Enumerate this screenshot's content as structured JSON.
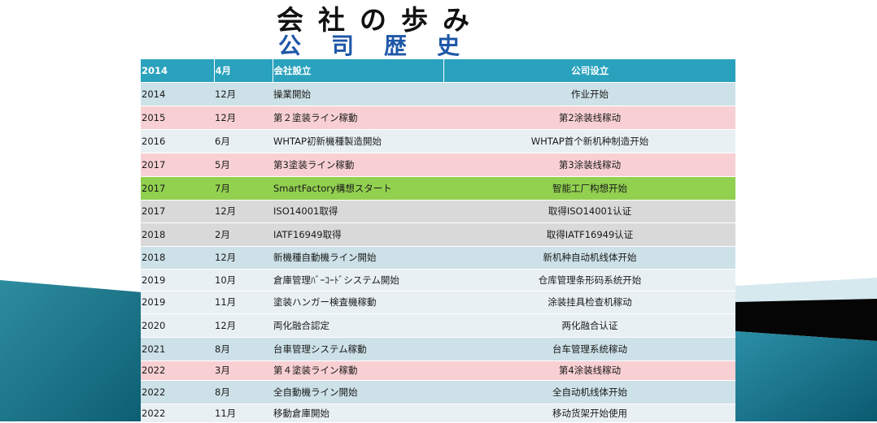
{
  "title": {
    "japanese": "会社の歩み",
    "chinese": "公司歴史"
  },
  "table": {
    "header": [
      "2014",
      "4月",
      "会社設立",
      "公司设立"
    ],
    "rows": [
      {
        "year": "2014",
        "month": "12月",
        "jp": "操業開始",
        "cn": "作业开始",
        "tone": "light"
      },
      {
        "year": "2015",
        "month": "12月",
        "jp": "第２塗装ライン稼動",
        "cn": "第2涂装线稼动",
        "tone": "pink"
      },
      {
        "year": "2016",
        "month": "6月",
        "jp": "WHTAP初新機種製造開始",
        "cn": "WHTAP首个新机种制造开始",
        "tone": "pale"
      },
      {
        "year": "2017",
        "month": "5月",
        "jp": "第3塗装ライン稼動",
        "cn": "第3涂装线稼动",
        "tone": "pink"
      },
      {
        "year": "2017",
        "month": "7月",
        "jp": "SmartFactory構想スタート",
        "cn": "智能工厂构想开始",
        "tone": "green"
      },
      {
        "year": "2017",
        "month": "12月",
        "jp": "ISO14001取得",
        "cn": "取得ISO14001认证",
        "tone": "gray"
      },
      {
        "year": "2018",
        "month": "2月",
        "jp": "IATF16949取得",
        "cn": "取得IATF16949认证",
        "tone": "gray"
      },
      {
        "year": "2018",
        "month": "12月",
        "jp": "新機種自動機ライン開始",
        "cn": "新机种自动机线体开始",
        "tone": "light"
      },
      {
        "year": "2019",
        "month": "10月",
        "jp": "倉庫管理ﾊﾞｰｺｰﾄﾞシステム開始",
        "cn": "仓库管理条形码系统开始",
        "tone": "pale"
      },
      {
        "year": "2019",
        "month": "11月",
        "jp": "塗装ハンガー検査機稼動",
        "cn": "涂装挂具检查机稼动",
        "tone": "pale"
      },
      {
        "year": "2020",
        "month": "12月",
        "jp": "両化融合認定",
        "cn": "两化融合认证",
        "tone": "pale"
      },
      {
        "year": "2021",
        "month": "8月",
        "jp": "台車管理システム稼動",
        "cn": "台车管理系统稼动",
        "tone": "light"
      },
      {
        "year": "2022",
        "month": " 3月",
        "jp": "第４塗装ライン稼動",
        "cn": "第4涂装线稼动",
        "tone": "pink"
      },
      {
        "year": "2022",
        "month": "8月",
        "jp": "全自動機ライン開始",
        "cn": "全自动机线体开始",
        "tone": "light"
      },
      {
        "year": "2022",
        "month": "11月",
        "jp": "移動倉庫開始",
        "cn": "移动货架开始使用",
        "tone": "pale"
      }
    ]
  },
  "colors": {
    "header": "#2aa2bd",
    "title_cn": "#1f57a8",
    "pink_row": "#f8d0d3",
    "green_row": "#92d050",
    "gray_row": "#d9d9d9"
  }
}
